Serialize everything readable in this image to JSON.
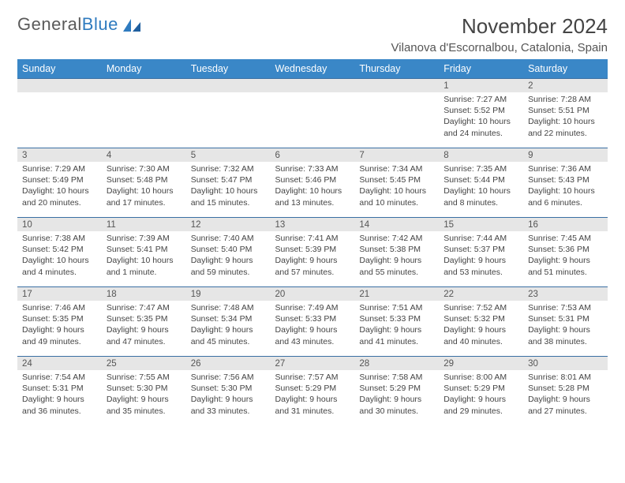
{
  "logo": {
    "text_gray": "General",
    "text_blue": "Blue"
  },
  "title": "November 2024",
  "location": "Vilanova d'Escornalbou, Catalonia, Spain",
  "colors": {
    "header_bg": "#3a87c7",
    "header_text": "#ffffff",
    "daynum_bg": "#e6e6e6",
    "border": "#3a6fa3",
    "body_text": "#444444",
    "logo_gray": "#5a5a5a",
    "logo_blue": "#2f7bbf"
  },
  "day_headers": [
    "Sunday",
    "Monday",
    "Tuesday",
    "Wednesday",
    "Thursday",
    "Friday",
    "Saturday"
  ],
  "weeks": [
    [
      null,
      null,
      null,
      null,
      null,
      {
        "n": "1",
        "sr": "Sunrise: 7:27 AM",
        "ss": "Sunset: 5:52 PM",
        "dl1": "Daylight: 10 hours",
        "dl2": "and 24 minutes."
      },
      {
        "n": "2",
        "sr": "Sunrise: 7:28 AM",
        "ss": "Sunset: 5:51 PM",
        "dl1": "Daylight: 10 hours",
        "dl2": "and 22 minutes."
      }
    ],
    [
      {
        "n": "3",
        "sr": "Sunrise: 7:29 AM",
        "ss": "Sunset: 5:49 PM",
        "dl1": "Daylight: 10 hours",
        "dl2": "and 20 minutes."
      },
      {
        "n": "4",
        "sr": "Sunrise: 7:30 AM",
        "ss": "Sunset: 5:48 PM",
        "dl1": "Daylight: 10 hours",
        "dl2": "and 17 minutes."
      },
      {
        "n": "5",
        "sr": "Sunrise: 7:32 AM",
        "ss": "Sunset: 5:47 PM",
        "dl1": "Daylight: 10 hours",
        "dl2": "and 15 minutes."
      },
      {
        "n": "6",
        "sr": "Sunrise: 7:33 AM",
        "ss": "Sunset: 5:46 PM",
        "dl1": "Daylight: 10 hours",
        "dl2": "and 13 minutes."
      },
      {
        "n": "7",
        "sr": "Sunrise: 7:34 AM",
        "ss": "Sunset: 5:45 PM",
        "dl1": "Daylight: 10 hours",
        "dl2": "and 10 minutes."
      },
      {
        "n": "8",
        "sr": "Sunrise: 7:35 AM",
        "ss": "Sunset: 5:44 PM",
        "dl1": "Daylight: 10 hours",
        "dl2": "and 8 minutes."
      },
      {
        "n": "9",
        "sr": "Sunrise: 7:36 AM",
        "ss": "Sunset: 5:43 PM",
        "dl1": "Daylight: 10 hours",
        "dl2": "and 6 minutes."
      }
    ],
    [
      {
        "n": "10",
        "sr": "Sunrise: 7:38 AM",
        "ss": "Sunset: 5:42 PM",
        "dl1": "Daylight: 10 hours",
        "dl2": "and 4 minutes."
      },
      {
        "n": "11",
        "sr": "Sunrise: 7:39 AM",
        "ss": "Sunset: 5:41 PM",
        "dl1": "Daylight: 10 hours",
        "dl2": "and 1 minute."
      },
      {
        "n": "12",
        "sr": "Sunrise: 7:40 AM",
        "ss": "Sunset: 5:40 PM",
        "dl1": "Daylight: 9 hours",
        "dl2": "and 59 minutes."
      },
      {
        "n": "13",
        "sr": "Sunrise: 7:41 AM",
        "ss": "Sunset: 5:39 PM",
        "dl1": "Daylight: 9 hours",
        "dl2": "and 57 minutes."
      },
      {
        "n": "14",
        "sr": "Sunrise: 7:42 AM",
        "ss": "Sunset: 5:38 PM",
        "dl1": "Daylight: 9 hours",
        "dl2": "and 55 minutes."
      },
      {
        "n": "15",
        "sr": "Sunrise: 7:44 AM",
        "ss": "Sunset: 5:37 PM",
        "dl1": "Daylight: 9 hours",
        "dl2": "and 53 minutes."
      },
      {
        "n": "16",
        "sr": "Sunrise: 7:45 AM",
        "ss": "Sunset: 5:36 PM",
        "dl1": "Daylight: 9 hours",
        "dl2": "and 51 minutes."
      }
    ],
    [
      {
        "n": "17",
        "sr": "Sunrise: 7:46 AM",
        "ss": "Sunset: 5:35 PM",
        "dl1": "Daylight: 9 hours",
        "dl2": "and 49 minutes."
      },
      {
        "n": "18",
        "sr": "Sunrise: 7:47 AM",
        "ss": "Sunset: 5:35 PM",
        "dl1": "Daylight: 9 hours",
        "dl2": "and 47 minutes."
      },
      {
        "n": "19",
        "sr": "Sunrise: 7:48 AM",
        "ss": "Sunset: 5:34 PM",
        "dl1": "Daylight: 9 hours",
        "dl2": "and 45 minutes."
      },
      {
        "n": "20",
        "sr": "Sunrise: 7:49 AM",
        "ss": "Sunset: 5:33 PM",
        "dl1": "Daylight: 9 hours",
        "dl2": "and 43 minutes."
      },
      {
        "n": "21",
        "sr": "Sunrise: 7:51 AM",
        "ss": "Sunset: 5:33 PM",
        "dl1": "Daylight: 9 hours",
        "dl2": "and 41 minutes."
      },
      {
        "n": "22",
        "sr": "Sunrise: 7:52 AM",
        "ss": "Sunset: 5:32 PM",
        "dl1": "Daylight: 9 hours",
        "dl2": "and 40 minutes."
      },
      {
        "n": "23",
        "sr": "Sunrise: 7:53 AM",
        "ss": "Sunset: 5:31 PM",
        "dl1": "Daylight: 9 hours",
        "dl2": "and 38 minutes."
      }
    ],
    [
      {
        "n": "24",
        "sr": "Sunrise: 7:54 AM",
        "ss": "Sunset: 5:31 PM",
        "dl1": "Daylight: 9 hours",
        "dl2": "and 36 minutes."
      },
      {
        "n": "25",
        "sr": "Sunrise: 7:55 AM",
        "ss": "Sunset: 5:30 PM",
        "dl1": "Daylight: 9 hours",
        "dl2": "and 35 minutes."
      },
      {
        "n": "26",
        "sr": "Sunrise: 7:56 AM",
        "ss": "Sunset: 5:30 PM",
        "dl1": "Daylight: 9 hours",
        "dl2": "and 33 minutes."
      },
      {
        "n": "27",
        "sr": "Sunrise: 7:57 AM",
        "ss": "Sunset: 5:29 PM",
        "dl1": "Daylight: 9 hours",
        "dl2": "and 31 minutes."
      },
      {
        "n": "28",
        "sr": "Sunrise: 7:58 AM",
        "ss": "Sunset: 5:29 PM",
        "dl1": "Daylight: 9 hours",
        "dl2": "and 30 minutes."
      },
      {
        "n": "29",
        "sr": "Sunrise: 8:00 AM",
        "ss": "Sunset: 5:29 PM",
        "dl1": "Daylight: 9 hours",
        "dl2": "and 29 minutes."
      },
      {
        "n": "30",
        "sr": "Sunrise: 8:01 AM",
        "ss": "Sunset: 5:28 PM",
        "dl1": "Daylight: 9 hours",
        "dl2": "and 27 minutes."
      }
    ]
  ]
}
